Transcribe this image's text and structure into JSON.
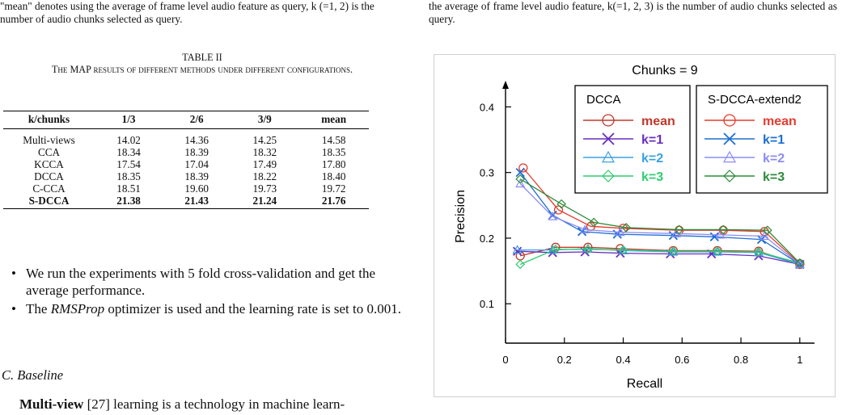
{
  "left_caption": "\"mean\" denotes using the average of frame level audio feature as query, k (=1, 2) is the number of audio chunks selected as query.",
  "right_caption": "the average of frame level audio feature, k(=1, 2, 3) is the number of audio chunks selected as query.",
  "table": {
    "label": "TABLE II",
    "title": "The MAP results of different methods under different configurations.",
    "headers": [
      "k/chunks",
      "1/3",
      "2/6",
      "3/9",
      "mean"
    ],
    "rows": [
      [
        "Multi-views",
        "14.02",
        "14.36",
        "14.25",
        "14.58"
      ],
      [
        "CCA",
        "18.34",
        "18.39",
        "18.32",
        "18.35"
      ],
      [
        "KCCA",
        "17.54",
        "17.04",
        "17.49",
        "17.80"
      ],
      [
        "DCCA",
        "18.35",
        "18.39",
        "18.22",
        "18.40"
      ],
      [
        "C-CCA",
        "18.51",
        "19.60",
        "19.73",
        "19.72"
      ],
      [
        "S-DCCA",
        "21.38",
        "21.43",
        "21.24",
        "21.76"
      ]
    ]
  },
  "bullets": {
    "b1": "We run the experiments with 5 fold cross-validation and get the average performance.",
    "b2_pre": "The ",
    "b2_term": "RMSProp",
    "b2_post": " optimizer is used and the learning rate is set to 0.001."
  },
  "section": "C. Baseline",
  "paragraph": {
    "bold": "Multi-view",
    "rest": " [27] learning is a technology in machine learn-"
  },
  "chart_data": {
    "type": "line",
    "title": "Chunks = 9",
    "xlabel": "Recall",
    "ylabel": "Precision",
    "xlim": [
      0,
      1.05
    ],
    "ylim": [
      0.04,
      0.43
    ],
    "xticks": [
      0,
      0.2,
      0.4,
      0.6,
      0.8,
      1
    ],
    "xtick_labels": [
      "0",
      "0.2",
      "0.4",
      "0.6",
      "0.8",
      "1"
    ],
    "yticks": [
      0.1,
      0.2,
      0.3,
      0.4
    ],
    "ytick_labels": [
      "0.1",
      "0.2",
      "0.3",
      "0.4"
    ],
    "legend_groups": [
      {
        "title": "DCCA",
        "entries": [
          "mean",
          "k=1",
          "k=2",
          "k=3"
        ]
      },
      {
        "title": "S-DCCA-extend2",
        "entries": [
          "mean",
          "k=1",
          "k=2",
          "k=3"
        ]
      }
    ],
    "series": [
      {
        "group": "DCCA",
        "name": "mean",
        "marker": "circle",
        "color": "#c0392b",
        "x": [
          0.05,
          0.17,
          0.28,
          0.39,
          0.57,
          0.72,
          0.86,
          1.0
        ],
        "y": [
          0.173,
          0.186,
          0.186,
          0.184,
          0.181,
          0.181,
          0.18,
          0.16
        ]
      },
      {
        "group": "DCCA",
        "name": "k=1",
        "marker": "x",
        "color": "#6a2ebf",
        "x": [
          0.04,
          0.16,
          0.27,
          0.39,
          0.56,
          0.7,
          0.86,
          1.0
        ],
        "y": [
          0.18,
          0.178,
          0.179,
          0.177,
          0.176,
          0.176,
          0.173,
          0.16
        ]
      },
      {
        "group": "DCCA",
        "name": "k=2",
        "marker": "triangle",
        "color": "#3aa0e0",
        "x": [
          0.04,
          0.16,
          0.28,
          0.4,
          0.57,
          0.72,
          0.86,
          1.0
        ],
        "y": [
          0.182,
          0.182,
          0.184,
          0.181,
          0.179,
          0.179,
          0.178,
          0.16
        ]
      },
      {
        "group": "DCCA",
        "name": "k=3",
        "marker": "diamond",
        "color": "#2ecc71",
        "x": [
          0.05,
          0.17,
          0.28,
          0.4,
          0.57,
          0.72,
          0.86,
          1.0
        ],
        "y": [
          0.16,
          0.183,
          0.183,
          0.182,
          0.18,
          0.18,
          0.179,
          0.162
        ]
      },
      {
        "group": "S-DCCA-extend2",
        "name": "mean",
        "marker": "circle",
        "color": "#e63b2e",
        "x": [
          0.06,
          0.18,
          0.29,
          0.4,
          0.59,
          0.74,
          0.88,
          1.0
        ],
        "y": [
          0.307,
          0.243,
          0.218,
          0.215,
          0.212,
          0.212,
          0.21,
          0.161
        ]
      },
      {
        "group": "S-DCCA-extend2",
        "name": "k=1",
        "marker": "x",
        "color": "#1f6fd1",
        "x": [
          0.05,
          0.16,
          0.26,
          0.38,
          0.57,
          0.71,
          0.87,
          1.0
        ],
        "y": [
          0.3,
          0.235,
          0.21,
          0.206,
          0.204,
          0.202,
          0.198,
          0.16
        ]
      },
      {
        "group": "S-DCCA-extend2",
        "name": "k=2",
        "marker": "triangle",
        "color": "#8c8cf5",
        "x": [
          0.05,
          0.16,
          0.27,
          0.39,
          0.58,
          0.73,
          0.88,
          1.0
        ],
        "y": [
          0.283,
          0.233,
          0.213,
          0.209,
          0.207,
          0.205,
          0.203,
          0.16
        ]
      },
      {
        "group": "S-DCCA-extend2",
        "name": "k=3",
        "marker": "diamond",
        "color": "#2e8b3a",
        "x": [
          0.05,
          0.19,
          0.3,
          0.41,
          0.59,
          0.74,
          0.89,
          1.0
        ],
        "y": [
          0.29,
          0.252,
          0.224,
          0.216,
          0.213,
          0.213,
          0.212,
          0.162
        ]
      }
    ]
  }
}
